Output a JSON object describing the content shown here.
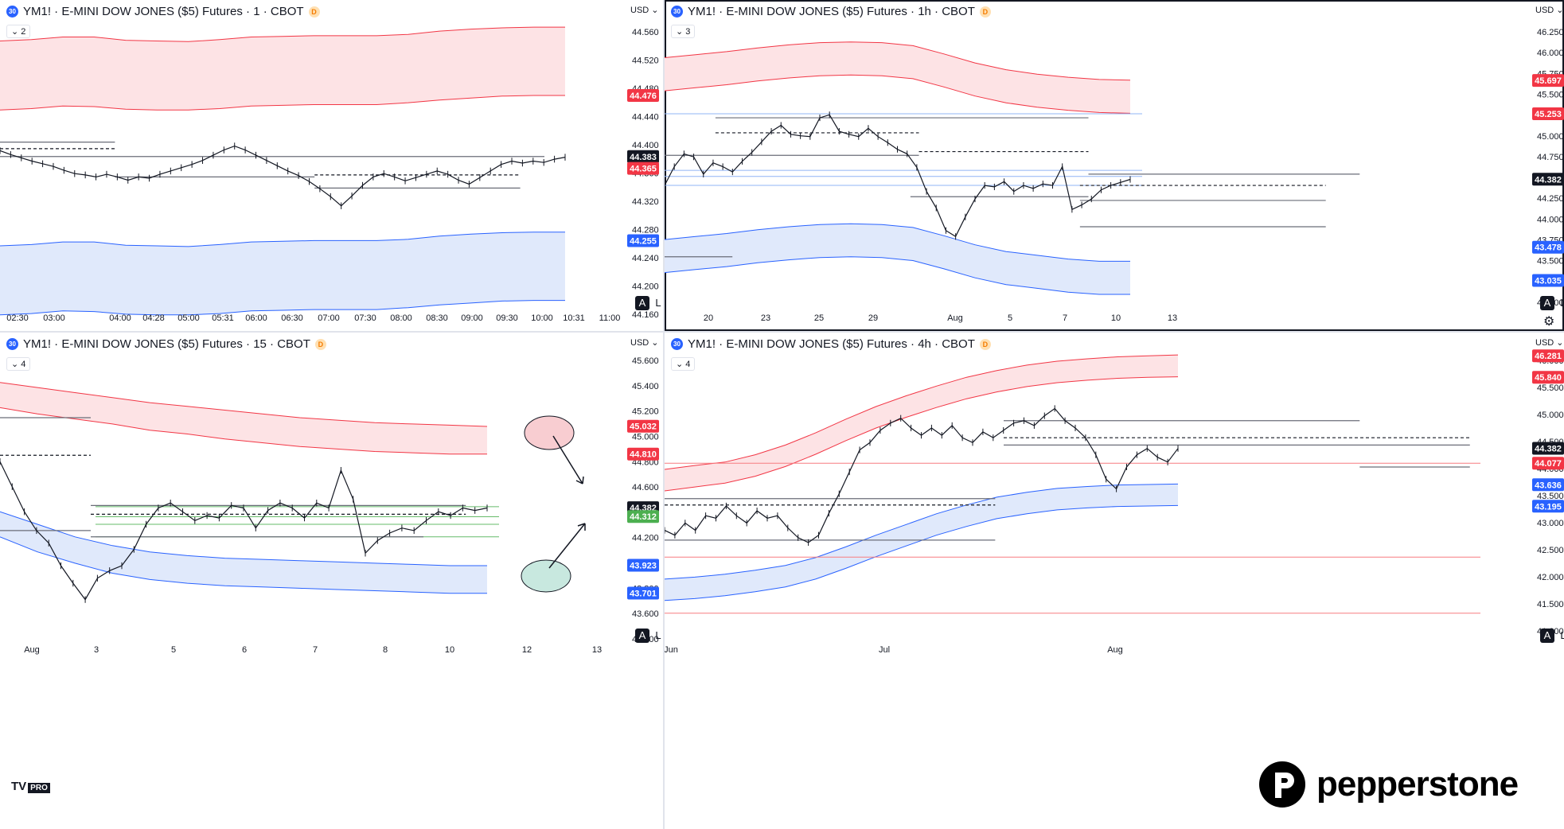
{
  "brand": {
    "name": "pepperstone",
    "tv": "TV",
    "tv_pro": "PRO"
  },
  "colors": {
    "up_band_fill": "#fde3e5",
    "up_band_line": "#f23645",
    "dn_band_fill": "#e0e9fb",
    "dn_band_line": "#2962ff",
    "price": "#131722",
    "hline": "#787b86",
    "label_red": "#f23645",
    "label_blue": "#2962ff",
    "label_black": "#131722",
    "label_green": "#4caf50",
    "pink_ellipse": "#f8cdd1",
    "teal_ellipse": "#c8e8df"
  },
  "panels": [
    {
      "id": "p1",
      "symbol": "YM1! · E-MINI DOW JONES ($5) Futures · 1 · CBOT",
      "badge": "D",
      "icon": "30",
      "collapse": "⌄ 2",
      "currency": "USD ⌄",
      "auto": "A",
      "log": "L",
      "chart_data": {
        "type": "line",
        "y_ticks": [
          "44.560",
          "44.520",
          "44.480",
          "44.440",
          "44.400",
          "44.360",
          "44.320",
          "44.280",
          "44.240",
          "44.200",
          "44.160"
        ],
        "x_ticks": [
          "02:30",
          "03:00",
          "04:00",
          "04:28",
          "05:00",
          "05:31",
          "06:00",
          "06:30",
          "07:00",
          "07:30",
          "08:00",
          "08:30",
          "09:00",
          "09:30",
          "10:00",
          "10:31",
          "11:00"
        ],
        "price_labels": [
          {
            "text": "44.476",
            "color": "red"
          },
          {
            "text": "44.383",
            "color": "black"
          },
          {
            "text": "44.365",
            "color": "red"
          },
          {
            "text": "44.255",
            "color": "blue"
          }
        ],
        "ylim": [
          44.155,
          44.585
        ],
        "series": [
          {
            "values": [
              44.392,
              44.386,
              44.381,
              44.376,
              44.372,
              44.368,
              44.362,
              44.357,
              44.355,
              44.352,
              44.356,
              44.352,
              44.347,
              44.352,
              44.35,
              44.356,
              44.361,
              44.366,
              44.371,
              44.377,
              44.385,
              44.393,
              44.399,
              44.393,
              44.385,
              44.377,
              44.369,
              44.361,
              44.354,
              44.345,
              44.334,
              44.322,
              44.308,
              44.323,
              44.339,
              44.352,
              44.357,
              44.352,
              44.346,
              44.351,
              44.356,
              44.361,
              44.356,
              44.347,
              44.341,
              44.351,
              44.361,
              44.371,
              44.376,
              44.373,
              44.376,
              44.374,
              44.379,
              44.382
            ]
          }
        ],
        "upper_band": {
          "top": [
            44.559,
            44.561,
            44.565,
            44.565,
            44.56,
            44.559,
            44.558,
            44.561,
            44.565,
            44.566,
            44.567,
            44.567,
            44.567,
            44.569,
            44.574,
            44.577,
            44.579,
            44.58,
            44.58
          ],
          "bottom": [
            44.454,
            44.456,
            44.46,
            44.459,
            44.455,
            44.454,
            44.454,
            44.456,
            44.46,
            44.461,
            44.462,
            44.462,
            44.462,
            44.465,
            44.469,
            44.472,
            44.475,
            44.476,
            44.476
          ]
        },
        "lower_band": {
          "top": [
            44.247,
            44.249,
            44.253,
            44.253,
            44.248,
            44.247,
            44.246,
            44.249,
            44.253,
            44.254,
            44.255,
            44.255,
            44.255,
            44.257,
            44.262,
            44.265,
            44.267,
            44.268,
            44.268
          ],
          "bottom": [
            44.142,
            44.144,
            44.148,
            44.147,
            44.143,
            44.142,
            44.142,
            44.144,
            44.148,
            44.149,
            44.15,
            44.15,
            44.15,
            44.153,
            44.157,
            44.16,
            44.163,
            44.164,
            44.164
          ]
        },
        "levels": [
          {
            "y": 44.405,
            "x0": 0,
            "x1": 0.19,
            "dash": false
          },
          {
            "y": 44.395,
            "x0": 0,
            "x1": 0.19,
            "dash": true
          },
          {
            "y": 44.383,
            "x0": 0,
            "x1": 0.9,
            "dash": false
          },
          {
            "y": 44.352,
            "x0": 0.19,
            "x1": 0.52,
            "dash": false
          },
          {
            "y": 44.355,
            "x0": 0.52,
            "x1": 0.86,
            "dash": true
          },
          {
            "y": 44.335,
            "x0": 0.52,
            "x1": 0.86,
            "dash": false
          }
        ]
      }
    },
    {
      "id": "p2",
      "symbol": "YM1! · E-MINI DOW JONES ($5) Futures · 1h · CBOT",
      "badge": "D",
      "icon": "30",
      "collapse": "⌄ 3",
      "currency": "USD ⌄",
      "auto": "A",
      "log": "L",
      "gear": "⚙",
      "chart_data": {
        "type": "line",
        "y_ticks": [
          "46.250",
          "46.000",
          "45.750",
          "45.500",
          "45.250",
          "45.000",
          "44.750",
          "44.500",
          "44.250",
          "44.000",
          "43.750",
          "43.500",
          "43.250",
          "43.000"
        ],
        "x_ticks": [
          "20",
          "23",
          "25",
          "29",
          "Aug",
          "5",
          "7",
          "10",
          "13"
        ],
        "price_labels": [
          {
            "text": "45.697",
            "color": "red"
          },
          {
            "text": "45.253",
            "color": "red"
          },
          {
            "text": "44.382",
            "color": "black"
          },
          {
            "text": "43.478",
            "color": "blue"
          },
          {
            "text": "43.035",
            "color": "blue"
          }
        ],
        "ylim": [
          42.85,
          46.45
        ],
        "series": [
          {
            "values": [
              44.3,
              44.55,
              44.72,
              44.68,
              44.45,
              44.6,
              44.55,
              44.48,
              44.62,
              44.74,
              44.88,
              45.02,
              45.1,
              44.98,
              44.96,
              44.95,
              45.2,
              45.24,
              45.02,
              44.98,
              44.95,
              45.06,
              44.95,
              44.87,
              44.78,
              44.72,
              44.54,
              44.22,
              44.0,
              43.7,
              43.62,
              43.88,
              44.12,
              44.3,
              44.28,
              44.35,
              44.22,
              44.3,
              44.26,
              44.32,
              44.3,
              44.55,
              43.98,
              44.04,
              44.12,
              44.24,
              44.3,
              44.34,
              44.38
            ]
          }
        ],
        "upper_band": {
          "top": [
            46.0,
            46.04,
            46.08,
            46.13,
            46.17,
            46.2,
            46.21,
            46.2,
            46.16,
            46.05,
            45.93,
            45.84,
            45.78,
            45.74,
            45.71,
            45.7
          ],
          "bottom": [
            45.56,
            45.6,
            45.64,
            45.69,
            45.73,
            45.76,
            45.77,
            45.76,
            45.72,
            45.61,
            45.49,
            45.4,
            45.34,
            45.3,
            45.27,
            45.26
          ]
        },
        "lower_band": {
          "top": [
            43.58,
            43.62,
            43.66,
            43.71,
            43.75,
            43.78,
            43.79,
            43.78,
            43.74,
            43.63,
            43.51,
            43.42,
            43.37,
            43.32,
            43.29,
            43.29
          ],
          "bottom": [
            43.14,
            43.18,
            43.22,
            43.27,
            43.31,
            43.34,
            43.35,
            43.34,
            43.3,
            43.19,
            43.07,
            42.98,
            42.93,
            42.88,
            42.85,
            42.85
          ]
        },
        "levels": [
          {
            "y": 45.2,
            "x0": 0.06,
            "x1": 0.5,
            "dash": false
          },
          {
            "y": 45.0,
            "x0": 0.06,
            "x1": 0.3,
            "dash": true
          },
          {
            "y": 44.75,
            "x0": 0.3,
            "x1": 0.5,
            "dash": true
          },
          {
            "y": 44.7,
            "x0": 0.0,
            "x1": 0.3,
            "dash": false
          },
          {
            "y": 44.15,
            "x0": 0.29,
            "x1": 0.5,
            "dash": false
          },
          {
            "y": 44.3,
            "x0": 0.49,
            "x1": 0.78,
            "dash": true
          },
          {
            "y": 44.1,
            "x0": 0.49,
            "x1": 0.78,
            "dash": false
          },
          {
            "y": 44.45,
            "x0": 0.5,
            "x1": 0.82,
            "dash": false
          },
          {
            "y": 43.75,
            "x0": 0.49,
            "x1": 0.78,
            "dash": false
          },
          {
            "y": 43.35,
            "x0": 0.0,
            "x1": 0.08,
            "dash": false
          }
        ],
        "blue_lines": [
          44.5,
          44.42,
          44.3,
          45.253
        ]
      }
    },
    {
      "id": "p3",
      "symbol": "YM1! · E-MINI DOW JONES ($5) Futures · 15 · CBOT",
      "badge": "D",
      "icon": "30",
      "collapse": "⌄ 4",
      "currency": "USD ⌄",
      "auto": "A",
      "log": "L",
      "chart_data": {
        "type": "line",
        "y_ticks": [
          "45.600",
          "45.400",
          "45.200",
          "45.000",
          "44.800",
          "44.600",
          "44.400",
          "44.200",
          "44.000",
          "43.800",
          "43.600",
          "43.400"
        ],
        "x_ticks": [
          "Aug",
          "3",
          "5",
          "6",
          "7",
          "8",
          "10",
          "12",
          "13"
        ],
        "price_labels": [
          {
            "text": "45.032",
            "color": "red"
          },
          {
            "text": "44.810",
            "color": "red"
          },
          {
            "text": "44.382",
            "color": "black"
          },
          {
            "text": "44.312",
            "color": "green"
          },
          {
            "text": "43.923",
            "color": "blue"
          },
          {
            "text": "43.701",
            "color": "blue"
          }
        ],
        "ylim": [
          43.4,
          45.62
        ],
        "series": [
          {
            "values": [
              44.75,
              44.55,
              44.35,
              44.2,
              44.1,
              43.92,
              43.78,
              43.65,
              43.82,
              43.88,
              43.92,
              44.05,
              44.25,
              44.38,
              44.42,
              44.35,
              44.28,
              44.32,
              44.3,
              44.4,
              44.38,
              44.22,
              44.36,
              44.42,
              44.38,
              44.3,
              44.42,
              44.38,
              44.68,
              44.45,
              44.02,
              44.12,
              44.18,
              44.22,
              44.2,
              44.28,
              44.35,
              44.32,
              44.38,
              44.36,
              44.38
            ]
          }
        ],
        "upper_band": {
          "top": [
            45.38,
            45.34,
            45.3,
            45.26,
            45.22,
            45.19,
            45.16,
            45.13,
            45.1,
            45.08,
            45.06,
            45.05,
            45.04,
            45.03
          ],
          "bottom": [
            45.18,
            45.13,
            45.09,
            45.05,
            45.0,
            44.97,
            44.93,
            44.9,
            44.87,
            44.85,
            44.83,
            44.82,
            44.81,
            44.81
          ]
        },
        "lower_band": {
          "top": [
            44.35,
            44.25,
            44.15,
            44.08,
            44.03,
            44.0,
            43.98,
            43.97,
            43.96,
            43.95,
            43.94,
            43.93,
            43.92,
            43.92
          ],
          "bottom": [
            44.15,
            44.03,
            43.94,
            43.86,
            43.81,
            43.78,
            43.76,
            43.75,
            43.74,
            43.73,
            43.72,
            43.71,
            43.7,
            43.7
          ]
        },
        "levels": [
          {
            "y": 45.1,
            "x0": 0.0,
            "x1": 0.15,
            "dash": false
          },
          {
            "y": 44.8,
            "x0": 0.0,
            "x1": 0.15,
            "dash": true
          },
          {
            "y": 44.2,
            "x0": 0.0,
            "x1": 0.15,
            "dash": false
          },
          {
            "y": 44.4,
            "x0": 0.15,
            "x1": 0.77,
            "dash": false
          },
          {
            "y": 44.33,
            "x0": 0.15,
            "x1": 0.77,
            "dash": true
          },
          {
            "y": 44.15,
            "x0": 0.15,
            "x1": 0.7,
            "dash": false
          }
        ],
        "green_lines": [
          44.39,
          44.31,
          44.25,
          44.15
        ]
      }
    },
    {
      "id": "p4",
      "symbol": "YM1! · E-MINI DOW JONES ($5) Futures · 4h · CBOT",
      "badge": "D",
      "icon": "30",
      "collapse": "⌄ 4",
      "currency": "USD ⌄",
      "auto": "A",
      "log": "L",
      "chart_data": {
        "type": "line",
        "y_ticks": [
          "46.000",
          "45.500",
          "45.000",
          "44.500",
          "44.000",
          "43.500",
          "43.000",
          "42.500",
          "42.000",
          "41.500",
          "41.000"
        ],
        "x_ticks": [
          "Jun",
          "Jul",
          "Aug"
        ],
        "price_labels": [
          {
            "text": "46.281",
            "color": "red"
          },
          {
            "text": "45.840",
            "color": "red"
          },
          {
            "text": "44.382",
            "color": "black"
          },
          {
            "text": "44.077",
            "color": "red"
          },
          {
            "text": "43.636",
            "color": "blue"
          },
          {
            "text": "43.195",
            "color": "blue"
          }
        ],
        "ylim": [
          40.8,
          46.35
        ],
        "series": [
          {
            "values": [
              42.7,
              42.6,
              42.85,
              42.7,
              43.0,
              42.95,
              43.2,
              43.0,
              42.85,
              43.1,
              42.95,
              43.0,
              42.75,
              42.55,
              42.45,
              42.6,
              43.05,
              43.45,
              43.9,
              44.35,
              44.5,
              44.75,
              44.9,
              45.0,
              44.8,
              44.65,
              44.8,
              44.65,
              44.85,
              44.6,
              44.5,
              44.72,
              44.6,
              44.75,
              44.9,
              44.95,
              44.85,
              45.05,
              45.2,
              44.95,
              44.8,
              44.6,
              44.25,
              43.75,
              43.55,
              44.0,
              44.25,
              44.38,
              44.2,
              44.1,
              44.38
            ]
          }
        ],
        "upper_band": {
          "top": [
            43.95,
            44.03,
            44.1,
            44.25,
            44.45,
            44.7,
            44.98,
            45.24,
            45.46,
            45.66,
            45.84,
            45.98,
            46.09,
            46.17,
            46.22,
            46.26,
            46.28,
            46.3
          ],
          "bottom": [
            43.51,
            43.59,
            43.67,
            43.81,
            44.01,
            44.26,
            44.54,
            44.8,
            45.02,
            45.22,
            45.4,
            45.54,
            45.65,
            45.73,
            45.78,
            45.82,
            45.84,
            45.85
          ]
        },
        "lower_band": {
          "top": [
            41.7,
            41.74,
            41.8,
            41.88,
            41.98,
            42.14,
            42.36,
            42.6,
            42.82,
            43.04,
            43.22,
            43.38,
            43.48,
            43.56,
            43.6,
            43.63,
            43.64,
            43.65
          ],
          "bottom": [
            41.26,
            41.3,
            41.36,
            41.44,
            41.54,
            41.7,
            41.92,
            42.16,
            42.38,
            42.6,
            42.78,
            42.94,
            43.04,
            43.12,
            43.16,
            43.19,
            43.2,
            43.21
          ]
        },
        "levels": [
          {
            "y": 43.35,
            "x0": 0.0,
            "x1": 0.39,
            "dash": false
          },
          {
            "y": 43.22,
            "x0": 0.0,
            "x1": 0.39,
            "dash": true
          },
          {
            "y": 42.5,
            "x0": 0.0,
            "x1": 0.39,
            "dash": false
          },
          {
            "y": 44.95,
            "x0": 0.4,
            "x1": 0.82,
            "dash": false
          },
          {
            "y": 44.6,
            "x0": 0.4,
            "x1": 0.95,
            "dash": true
          },
          {
            "y": 44.45,
            "x0": 0.4,
            "x1": 0.95,
            "dash": false
          },
          {
            "y": 44.0,
            "x0": 0.82,
            "x1": 0.95,
            "dash": false
          }
        ],
        "red_lines": [
          44.077,
          42.15,
          41.0
        ]
      }
    }
  ]
}
